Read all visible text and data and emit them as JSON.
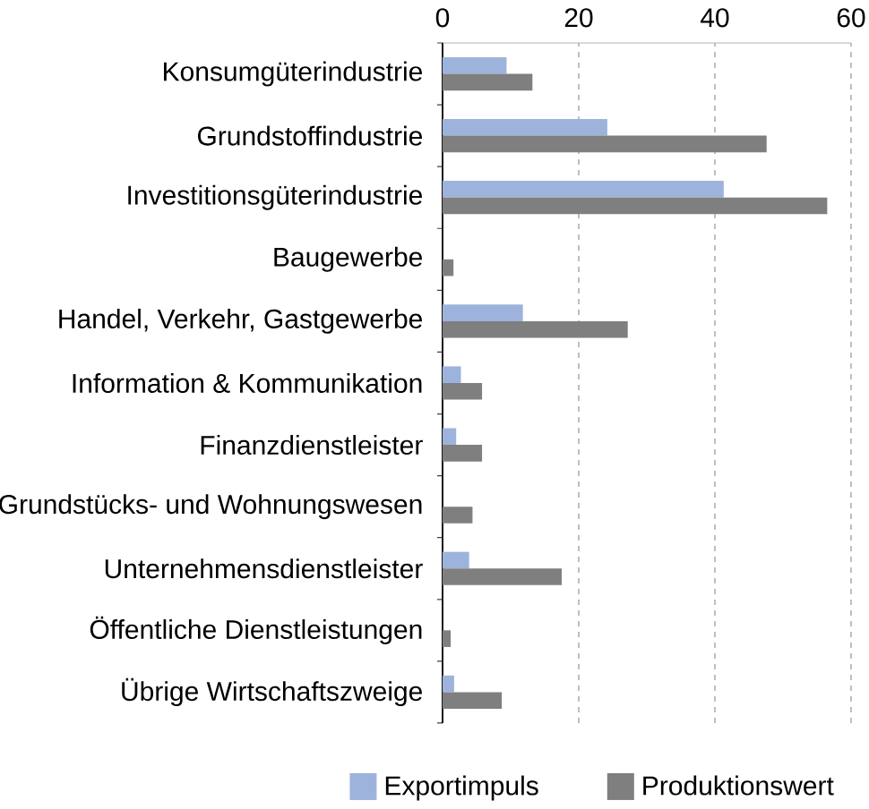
{
  "chart_data": {
    "type": "bar",
    "orientation": "horizontal",
    "categories": [
      "Konsumgüterindustrie",
      "Grundstoffindustrie",
      "Investitionsgüterindustrie",
      "Baugewerbe",
      "Handel, Verkehr, Gastgewerbe",
      "Information & Kommunikation",
      "Finanzdienstleister",
      "Grundstücks- und Wohnungswesen",
      "Unternehmensdienstleister",
      "Öffentliche Dienstleistungen",
      "Übrige Wirtschaftszweige"
    ],
    "series": [
      {
        "name": "Exportimpuls",
        "color": "#9eb3db",
        "values": [
          9.4,
          24.2,
          41.3,
          null,
          11.8,
          2.7,
          2.0,
          null,
          3.9,
          null,
          1.7
        ]
      },
      {
        "name": "Produktionswert",
        "color": "#7f7f7f",
        "values": [
          13.2,
          47.6,
          56.5,
          1.6,
          27.2,
          5.8,
          5.8,
          4.4,
          17.5,
          1.2,
          8.7
        ]
      }
    ],
    "xlim": [
      0,
      60
    ],
    "xticks": [
      0,
      20,
      40,
      60
    ],
    "grid": "x",
    "legend": "bottom"
  }
}
